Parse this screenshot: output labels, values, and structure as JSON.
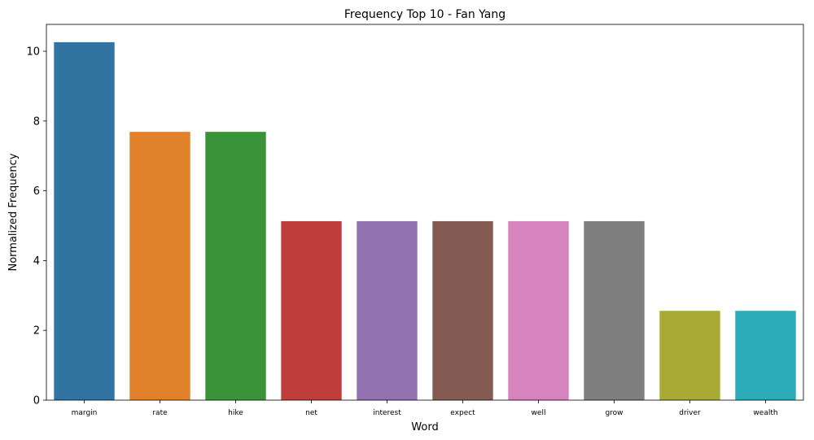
{
  "chart_data": {
    "type": "bar",
    "title": "Frequency Top 10 - Fan Yang",
    "xlabel": "Word",
    "ylabel": "Normalized Frequency",
    "categories": [
      "margin",
      "rate",
      "hike",
      "net",
      "interest",
      "expect",
      "well",
      "grow",
      "driver",
      "wealth"
    ],
    "values": [
      10.26,
      7.69,
      7.69,
      5.13,
      5.13,
      5.13,
      5.13,
      5.13,
      2.56,
      2.56
    ],
    "colors": [
      "#3274a1",
      "#e1812c",
      "#3a923a",
      "#c03d3e",
      "#9372b2",
      "#845b53",
      "#d684bd",
      "#7f7f7f",
      "#a9aa35",
      "#2eabb8"
    ],
    "yticks": [
      "0",
      "2",
      "4",
      "6",
      "8",
      "10"
    ],
    "ylim": [
      0,
      10.77
    ],
    "grid": false
  }
}
